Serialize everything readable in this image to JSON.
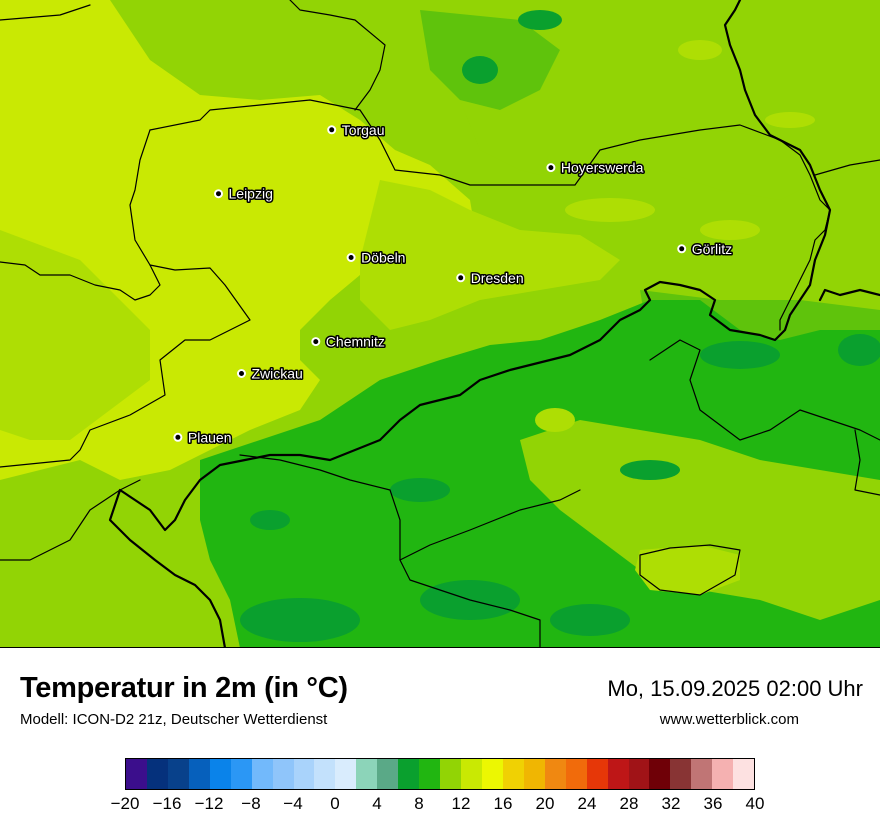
{
  "legend": {
    "title": "Temperatur in 2m (in °C)",
    "model": "Modell: ICON-D2 21z, Deutscher Wetterdienst",
    "datetime": "Mo, 15.09.2025 02:00 Uhr",
    "website": "www.wetterblick.com",
    "colorbar": {
      "min": -20,
      "max": 40,
      "step": 2,
      "colors": [
        "#3b0e8c",
        "#05317c",
        "#08418b",
        "#0660bc",
        "#0a83ea",
        "#2b97f5",
        "#72b9fb",
        "#8fc5fa",
        "#a9d3fb",
        "#c3e1fc",
        "#d9ecfd",
        "#8cd4b9",
        "#5aa987",
        "#0aa02e",
        "#21b611",
        "#92d405",
        "#c9e903",
        "#ecf702",
        "#f0d103",
        "#f0b602",
        "#f08811",
        "#f16b0b",
        "#e63708",
        "#be1617",
        "#a01317",
        "#6f0007",
        "#883434",
        "#c07575",
        "#f5b1b1",
        "#fde1e1"
      ],
      "tick_labels": [
        "−20",
        "−16",
        "−12",
        "−8",
        "−4",
        "0",
        "4",
        "8",
        "12",
        "16",
        "20",
        "24",
        "28",
        "32",
        "36",
        "40"
      ]
    }
  },
  "map": {
    "temperature_colors": {
      "t10": "#21b611",
      "t11": "#5fc30c",
      "t12": "#92d405",
      "t13": "#aede04",
      "t14": "#c9e903"
    },
    "dark_patch_color": "#0aa02e",
    "cities": [
      {
        "name": "Torgau",
        "lon": 13.01,
        "lat": 51.56
      },
      {
        "name": "Hoyerswerda",
        "lon": 14.25,
        "lat": 51.43
      },
      {
        "name": "Leipzig",
        "lon": 12.37,
        "lat": 51.34
      },
      {
        "name": "Görlitz",
        "lon": 14.99,
        "lat": 51.15
      },
      {
        "name": "Döbeln",
        "lon": 13.12,
        "lat": 51.12
      },
      {
        "name": "Dresden",
        "lon": 13.74,
        "lat": 51.05
      },
      {
        "name": "Chemnitz",
        "lon": 12.92,
        "lat": 50.83
      },
      {
        "name": "Zwickau",
        "lon": 12.5,
        "lat": 50.72
      },
      {
        "name": "Plauen",
        "lon": 12.14,
        "lat": 50.5
      }
    ]
  }
}
